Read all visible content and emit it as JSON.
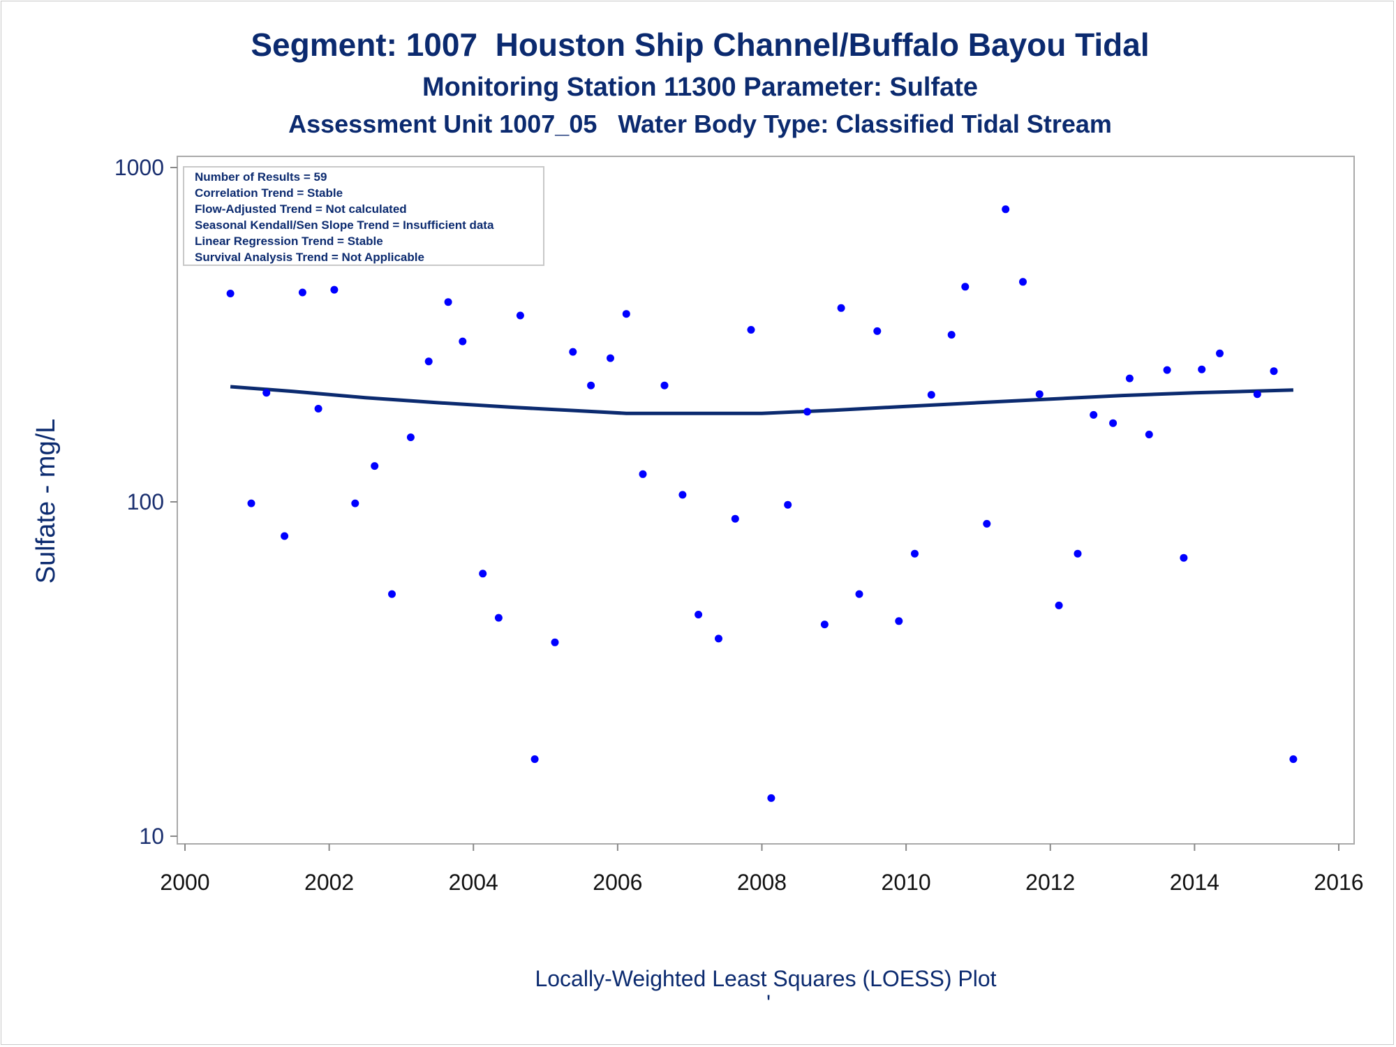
{
  "chart_data": {
    "type": "scatter",
    "title": "Segment: 1007  Houston Ship Channel/Buffalo Bayou Tidal",
    "subtitle": "Monitoring Station 11300 Parameter: Sulfate",
    "subtitle2": "Assessment Unit 1007_05   Water Body Type: Classified Tidal Stream",
    "xlabel": "Locally-Weighted Least Squares (LOESS) Plot",
    "ylabel": "Sulfate - mg/L",
    "footnote": "'",
    "xlim": [
      2000,
      2016
    ],
    "ylim": [
      10,
      1000
    ],
    "yscale": "log",
    "xticks": [
      2000,
      2002,
      2004,
      2006,
      2008,
      2010,
      2012,
      2014,
      2016
    ],
    "yticks": [
      10,
      100,
      1000
    ],
    "grid": false,
    "point_color": "#0000ff",
    "line_color": "#0b2a6f",
    "stats": [
      "Number of Results = 59",
      "Correlation Trend = Stable",
      "Flow-Adjusted Trend = Not calculated",
      "Seasonal Kendall/Sen Slope Trend = Insufficient data",
      "Linear Regression Trend = Stable",
      "Survival Analysis Trend = Not Applicable"
    ],
    "series": [
      {
        "type": "scatter",
        "points": [
          [
            2000.63,
            420
          ],
          [
            2000.92,
            99
          ],
          [
            2001.13,
            212
          ],
          [
            2001.38,
            79
          ],
          [
            2001.63,
            423
          ],
          [
            2001.85,
            190
          ],
          [
            2002.07,
            431
          ],
          [
            2002.36,
            99
          ],
          [
            2002.63,
            128
          ],
          [
            2002.87,
            53
          ],
          [
            2003.13,
            156
          ],
          [
            2003.38,
            263
          ],
          [
            2003.65,
            396
          ],
          [
            2003.85,
            302
          ],
          [
            2004.13,
            61
          ],
          [
            2004.35,
            45
          ],
          [
            2004.65,
            361
          ],
          [
            2004.85,
            17
          ],
          [
            2005.13,
            38
          ],
          [
            2005.38,
            281
          ],
          [
            2005.63,
            223
          ],
          [
            2005.9,
            269
          ],
          [
            2006.12,
            365
          ],
          [
            2006.35,
            121
          ],
          [
            2006.65,
            223
          ],
          [
            2006.9,
            105
          ],
          [
            2007.12,
            46
          ],
          [
            2007.4,
            39
          ],
          [
            2007.63,
            89
          ],
          [
            2007.85,
            327
          ],
          [
            2008.13,
            13
          ],
          [
            2008.36,
            98
          ],
          [
            2008.63,
            186
          ],
          [
            2008.87,
            43
          ],
          [
            2009.1,
            380
          ],
          [
            2009.35,
            53
          ],
          [
            2009.6,
            324
          ],
          [
            2009.9,
            44
          ],
          [
            2010.12,
            70
          ],
          [
            2010.35,
            209
          ],
          [
            2010.63,
            316
          ],
          [
            2010.82,
            440
          ],
          [
            2011.12,
            86
          ],
          [
            2011.38,
            750
          ],
          [
            2011.62,
            455
          ],
          [
            2011.85,
            210
          ],
          [
            2012.12,
            49
          ],
          [
            2012.38,
            70
          ],
          [
            2012.6,
            182
          ],
          [
            2012.87,
            172
          ],
          [
            2013.1,
            234
          ],
          [
            2013.37,
            159
          ],
          [
            2013.62,
            248
          ],
          [
            2013.85,
            68
          ],
          [
            2014.1,
            249
          ],
          [
            2014.35,
            278
          ],
          [
            2014.87,
            210
          ],
          [
            2015.1,
            246
          ],
          [
            2015.37,
            17
          ]
        ]
      },
      {
        "type": "line",
        "name": "LOESS",
        "points": [
          [
            2000.63,
            221
          ],
          [
            2001.5,
            214
          ],
          [
            2002.5,
            205
          ],
          [
            2003.5,
            198
          ],
          [
            2004.5,
            192
          ],
          [
            2005.5,
            187
          ],
          [
            2006.12,
            184
          ],
          [
            2007.0,
            184
          ],
          [
            2008.0,
            184
          ],
          [
            2009.0,
            188
          ],
          [
            2010.0,
            193
          ],
          [
            2011.0,
            198
          ],
          [
            2012.0,
            203
          ],
          [
            2013.0,
            208
          ],
          [
            2014.0,
            212
          ],
          [
            2015.37,
            216
          ]
        ]
      }
    ]
  }
}
